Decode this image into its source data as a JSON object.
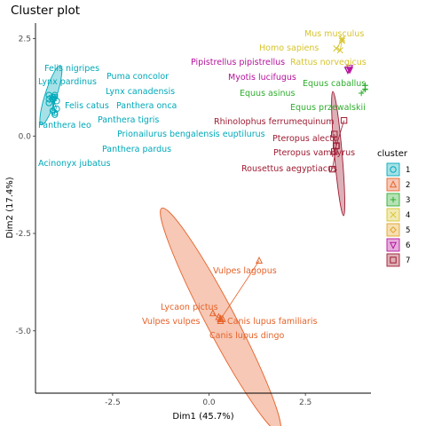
{
  "chart_data": {
    "type": "scatter",
    "title": "Cluster plot",
    "xlabel": "Dim1 (45.7%)",
    "ylabel": "Dim2 (17.4%)",
    "xlim": [
      -4.5,
      4.2
    ],
    "ylim": [
      -6.6,
      2.9
    ],
    "x_ticks": [
      -2.5,
      0.0,
      2.5
    ],
    "y_ticks": [
      2.5,
      0.0,
      -2.5,
      -5.0
    ],
    "x_tick_labels": [
      "-2.5",
      "0.0",
      "2.5"
    ],
    "y_tick_labels": [
      "2.5",
      "0.0",
      "-2.5",
      "-5.0"
    ],
    "grid": false,
    "legend_position": "right",
    "legend_title": "cluster",
    "clusters": [
      {
        "name": "1",
        "color": "#00A9B9",
        "center": [
          -4.05,
          0.95
        ],
        "ellipse": {
          "cx": -4.1,
          "cy": 1.05,
          "rx": 0.8,
          "ry": 0.15,
          "angle": 72
        },
        "points": [
          {
            "label": "Felis nigripes",
            "x": -4.05,
            "y": 1.0
          },
          {
            "label": "Lynx pardinus",
            "x": -4.15,
            "y": 1.05
          },
          {
            "label": "Puma concolor",
            "x": -4.0,
            "y": 1.0
          },
          {
            "label": "Lynx canadensis",
            "x": -4.0,
            "y": 1.05
          },
          {
            "label": "Panthera onca",
            "x": -3.95,
            "y": 0.9
          },
          {
            "label": "Felis catus",
            "x": -4.15,
            "y": 0.85
          },
          {
            "label": "Panthera tigris",
            "x": -3.95,
            "y": 0.7
          },
          {
            "label": "Panthera leo",
            "x": -4.05,
            "y": 0.65
          },
          {
            "label": "Prionailurus bengalensis euptilurus",
            "x": -4.0,
            "y": 0.6
          },
          {
            "label": "Panthera pardus",
            "x": -4.0,
            "y": 0.55
          },
          {
            "label": "Acinonyx jubatus",
            "x": -4.15,
            "y": 0.95
          }
        ]
      },
      {
        "name": "2",
        "color": "#E6622A",
        "center": [
          0.3,
          -4.7
        ],
        "ellipse": {
          "cx": 0.3,
          "cy": -4.72,
          "rx": 3.25,
          "ry": 0.38,
          "angle": -62
        },
        "points": [
          {
            "label": "Vulpes lagopus",
            "x": 1.3,
            "y": -3.2
          },
          {
            "label": "Lycaon pictus",
            "x": 0.1,
            "y": -4.55
          },
          {
            "label": "Vulpes vulpes",
            "x": 0.25,
            "y": -4.65
          },
          {
            "label": "Canis lupus familiaris",
            "x": 0.35,
            "y": -4.7
          },
          {
            "label": "Canis lupus dingo",
            "x": 0.3,
            "y": -4.75
          }
        ]
      },
      {
        "name": "3",
        "color": "#2EAD2E",
        "center": [
          4.05,
          1.2
        ],
        "ellipse": null,
        "points": [
          {
            "label": "Equus asinus",
            "x": 3.95,
            "y": 1.1
          },
          {
            "label": "Equus caballus",
            "x": 4.05,
            "y": 1.3
          },
          {
            "label": "Equus przewalskii",
            "x": 4.05,
            "y": 1.3
          }
        ]
      },
      {
        "name": "4",
        "color": "#D7C42B",
        "center": [
          3.45,
          2.45
        ],
        "ellipse": null,
        "points": [
          {
            "label": "Mus musculus",
            "x": 3.45,
            "y": 2.5
          },
          {
            "label": "Homo sapiens",
            "x": 3.3,
            "y": 2.25
          },
          {
            "label": "Rattus norvegicus",
            "x": 3.4,
            "y": 2.2
          }
        ]
      },
      {
        "name": "5",
        "color": "#E3A324",
        "center": [
          3.4,
          2.35
        ],
        "ellipse": null,
        "points": []
      },
      {
        "name": "6",
        "color": "#B5119B",
        "center": [
          3.6,
          1.7
        ],
        "ellipse": null,
        "points": [
          {
            "label": "Pipistrellus pipistrellus",
            "x": 3.65,
            "y": 1.75
          },
          {
            "label": "Myotis lucifugus",
            "x": 3.65,
            "y": 1.7
          }
        ]
      },
      {
        "name": "7",
        "color": "#9E1C32",
        "center": [
          3.3,
          -0.25
        ],
        "ellipse": {
          "cx": 3.35,
          "cy": -0.45,
          "rx": 1.6,
          "ry": 0.1,
          "angle": -85
        },
        "points": [
          {
            "label": "Rhinolophus ferrumequinum",
            "x": 3.5,
            "y": 0.4
          },
          {
            "label": "Pteropus alecto",
            "x": 3.25,
            "y": 0.05
          },
          {
            "label": "Pteropus vampyrus",
            "x": 3.25,
            "y": -0.4
          },
          {
            "label": "Rousettus aegyptiacus",
            "x": 3.2,
            "y": -0.85
          }
        ]
      }
    ]
  }
}
